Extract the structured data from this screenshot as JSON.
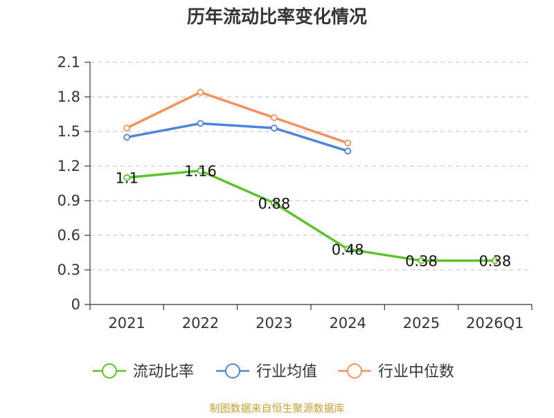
{
  "chart_data": {
    "type": "line",
    "title": "历年流动比率变化情况",
    "categories": [
      "2021",
      "2022",
      "2023",
      "2024",
      "2025",
      "2026Q1"
    ],
    "ylim": [
      0,
      2.1
    ],
    "yticks": [
      "0",
      "0.3",
      "0.6",
      "0.9",
      "1.2",
      "1.5",
      "1.8",
      "2.1"
    ],
    "grid": true,
    "legend_position": "bottom",
    "series": [
      {
        "name": "流动比率",
        "color": "#5cc22a",
        "values": [
          1.1,
          1.16,
          0.88,
          0.48,
          0.38,
          0.38
        ],
        "labels": [
          "1.1",
          "1.16",
          "0.88",
          "0.48",
          "0.38",
          "0.38"
        ]
      },
      {
        "name": "行业均值",
        "color": "#4f84dc",
        "values": [
          1.45,
          1.57,
          1.53,
          1.33,
          null,
          null
        ]
      },
      {
        "name": "行业中位数",
        "color": "#f5905a",
        "values": [
          1.53,
          1.84,
          1.62,
          1.4,
          null,
          null
        ]
      }
    ],
    "source": "制图数据来自恒生聚源数据库"
  }
}
